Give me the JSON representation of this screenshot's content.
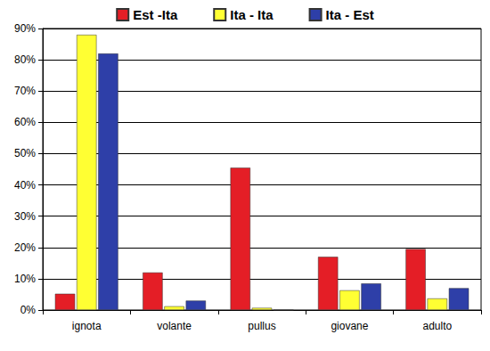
{
  "chart_data": {
    "type": "bar",
    "categories": [
      "ignota",
      "volante",
      "pullus",
      "giovane",
      "adulto"
    ],
    "series": [
      {
        "name": "Est -Ita",
        "color": "#e41e26",
        "values": [
          5.2,
          12,
          45.5,
          17,
          19.5
        ]
      },
      {
        "name": "Ita - Ita",
        "color": "#ffff33",
        "values": [
          88,
          1.2,
          0.7,
          6.3,
          3.7
        ]
      },
      {
        "name": "Ita - Est",
        "color": "#2e3fa8",
        "values": [
          82,
          3,
          0,
          8.5,
          7
        ]
      }
    ],
    "ylim": [
      0,
      90
    ],
    "yticks": [
      {
        "value": 0,
        "label": "0%"
      },
      {
        "value": 10,
        "label": "10%"
      },
      {
        "value": 20,
        "label": "20%"
      },
      {
        "value": 30,
        "label": "30%"
      },
      {
        "value": 40,
        "label": "40%"
      },
      {
        "value": 50,
        "label": "50%"
      },
      {
        "value": 60,
        "label": "60%"
      },
      {
        "value": 70,
        "label": "70%"
      },
      {
        "value": 80,
        "label": "80%"
      },
      {
        "value": 90,
        "label": "90%"
      }
    ],
    "grid": true,
    "legend": "top"
  }
}
